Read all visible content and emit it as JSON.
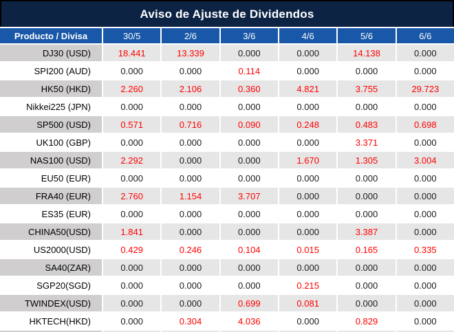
{
  "title": "Aviso de Ajuste de Dividendos",
  "table": {
    "product_header": "Producto / Divisa",
    "date_columns": [
      "30/5",
      "2/6",
      "3/6",
      "4/6",
      "5/6",
      "6/6"
    ],
    "rows": [
      {
        "product": "DJ30 (USD)",
        "values": [
          "18.441",
          "13.339",
          "0.000",
          "0.000",
          "14.138",
          "0.000"
        ]
      },
      {
        "product": "SPI200 (AUD)",
        "values": [
          "0.000",
          "0.000",
          "0.114",
          "0.000",
          "0.000",
          "0.000"
        ]
      },
      {
        "product": "HK50 (HKD)",
        "values": [
          "2.260",
          "2.106",
          "0.360",
          "4.821",
          "3.755",
          "29.723"
        ]
      },
      {
        "product": "Nikkei225 (JPN)",
        "values": [
          "0.000",
          "0.000",
          "0.000",
          "0.000",
          "0.000",
          "0.000"
        ]
      },
      {
        "product": "SP500 (USD)",
        "values": [
          "0.571",
          "0.716",
          "0.090",
          "0.248",
          "0.483",
          "0.698"
        ]
      },
      {
        "product": "UK100 (GBP)",
        "values": [
          "0.000",
          "0.000",
          "0.000",
          "0.000",
          "3.371",
          "0.000"
        ]
      },
      {
        "product": "NAS100 (USD)",
        "values": [
          "2.292",
          "0.000",
          "0.000",
          "1.670",
          "1.305",
          "3.004"
        ]
      },
      {
        "product": "EU50 (EUR)",
        "values": [
          "0.000",
          "0.000",
          "0.000",
          "0.000",
          "0.000",
          "0.000"
        ]
      },
      {
        "product": "FRA40 (EUR)",
        "values": [
          "2.760",
          "1.154",
          "3.707",
          "0.000",
          "0.000",
          "0.000"
        ]
      },
      {
        "product": "ES35 (EUR)",
        "values": [
          "0.000",
          "0.000",
          "0.000",
          "0.000",
          "0.000",
          "0.000"
        ]
      },
      {
        "product": "CHINA50(USD)",
        "values": [
          "1.841",
          "0.000",
          "0.000",
          "0.000",
          "3.387",
          "0.000"
        ]
      },
      {
        "product": "US2000(USD)",
        "values": [
          "0.429",
          "0.246",
          "0.104",
          "0.015",
          "0.165",
          "0.335"
        ]
      },
      {
        "product": "SA40(ZAR)",
        "values": [
          "0.000",
          "0.000",
          "0.000",
          "0.000",
          "0.000",
          "0.000"
        ]
      },
      {
        "product": "SGP20(SGD)",
        "values": [
          "0.000",
          "0.000",
          "0.000",
          "0.215",
          "0.000",
          "0.000"
        ]
      },
      {
        "product": "TWINDEX(USD)",
        "values": [
          "0.000",
          "0.000",
          "0.699",
          "0.081",
          "0.000",
          "0.000"
        ]
      },
      {
        "product": "HKTECH(HKD)",
        "values": [
          "0.000",
          "0.304",
          "4.036",
          "0.000",
          "0.829",
          "0.000"
        ]
      }
    ]
  },
  "colors": {
    "title_bar_bg": "#0d2344",
    "title_bar_border": "#000000",
    "header_row_bg": "#1957a8",
    "stripe_label_bg": "#d0cece",
    "stripe_value_bg": "#e7e6e6",
    "nonzero_value_color": "#fe0000",
    "zero_value_color": "#1a1a1a"
  }
}
